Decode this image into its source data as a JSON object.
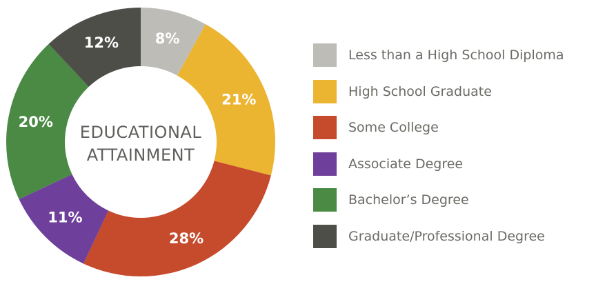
{
  "chart_data": {
    "type": "pie",
    "title": "EDUCATIONAL ATTAINMENT",
    "title_lines": [
      "EDUCATIONAL",
      "ATTAINMENT"
    ],
    "donut": true,
    "legend_position": "right",
    "categories": [
      "Less than a High School Diploma",
      "High School Graduate",
      "Some College",
      "Associate Degree",
      "Bachelor’s Degree",
      "Graduate/Professional Degree"
    ],
    "values": [
      8,
      21,
      28,
      11,
      20,
      12
    ],
    "labels": [
      "8%",
      "21%",
      "28%",
      "11%",
      "20%",
      "12%"
    ],
    "colors": [
      "#bdbcb7",
      "#ecb531",
      "#c64a2c",
      "#6e3f9b",
      "#4a8a45",
      "#4e4e48"
    ]
  }
}
